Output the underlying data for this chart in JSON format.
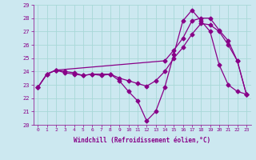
{
  "xlabel": "Windchill (Refroidissement éolien,°C)",
  "bg_color": "#cce8f0",
  "line_color": "#880088",
  "grid_color": "#a8d8d8",
  "xlim": [
    -0.5,
    23.5
  ],
  "ylim": [
    20,
    29
  ],
  "xticks": [
    0,
    1,
    2,
    3,
    4,
    5,
    6,
    7,
    8,
    9,
    10,
    11,
    12,
    13,
    14,
    15,
    16,
    17,
    18,
    19,
    20,
    21,
    22,
    23
  ],
  "yticks": [
    20,
    21,
    22,
    23,
    24,
    25,
    26,
    27,
    28,
    29
  ],
  "series1_x": [
    0,
    1,
    2,
    3,
    4,
    5,
    6,
    7,
    8,
    9,
    10,
    11,
    12,
    13,
    14,
    15,
    16,
    17,
    18,
    19,
    20,
    21,
    22,
    23
  ],
  "series1_y": [
    22.8,
    23.8,
    24.1,
    23.9,
    23.8,
    23.7,
    23.8,
    23.7,
    23.8,
    23.3,
    22.5,
    21.8,
    20.3,
    21.0,
    22.8,
    25.3,
    27.8,
    28.6,
    27.8,
    27.0,
    24.5,
    23.0,
    22.5,
    22.3
  ],
  "series2_x": [
    0,
    1,
    2,
    14,
    15,
    16,
    17,
    18,
    19,
    20,
    21,
    22,
    23
  ],
  "series2_y": [
    22.8,
    23.8,
    24.1,
    24.8,
    25.6,
    26.5,
    27.8,
    28.0,
    28.0,
    27.1,
    26.3,
    24.8,
    22.3
  ],
  "series3_x": [
    0,
    1,
    2,
    3,
    4,
    5,
    6,
    7,
    8,
    9,
    10,
    11,
    12,
    13,
    14,
    15,
    16,
    17,
    18,
    19,
    20,
    21,
    22,
    23
  ],
  "series3_y": [
    22.8,
    23.8,
    24.1,
    24.0,
    23.9,
    23.7,
    23.8,
    23.8,
    23.8,
    23.5,
    23.3,
    23.1,
    22.9,
    23.3,
    24.0,
    25.0,
    25.8,
    26.8,
    27.6,
    27.5,
    27.0,
    26.0,
    24.8,
    22.3
  ],
  "marker_size": 2.5,
  "line_width": 0.9
}
